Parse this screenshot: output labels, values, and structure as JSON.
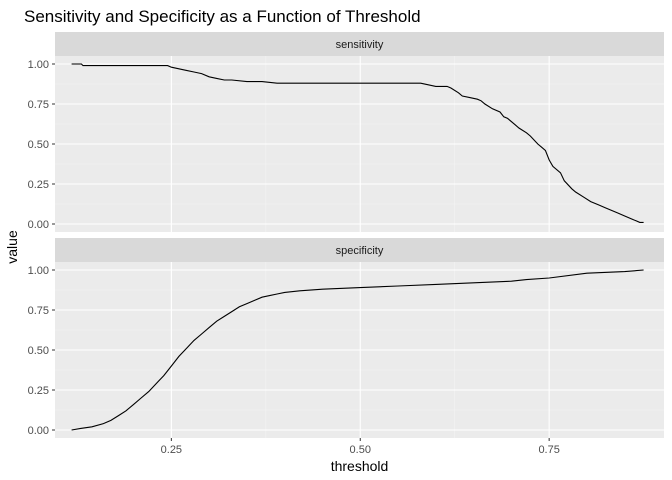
{
  "chart_data": {
    "type": "line",
    "title": "Sensitivity and Specificity as a Function of Threshold",
    "xlabel": "threshold",
    "ylabel": "value",
    "x_ticks": [
      0.25,
      0.5,
      0.75
    ],
    "x_tick_labels": [
      "0.25",
      "0.50",
      "0.75"
    ],
    "y_ticks": [
      0,
      0.25,
      0.5,
      0.75,
      1
    ],
    "y_tick_labels": [
      "0.00",
      "0.25",
      "0.50",
      "0.75",
      "1.00"
    ],
    "xlim": [
      0.096,
      0.902
    ],
    "ylim": [
      -0.05,
      1.05
    ],
    "grid": true,
    "facets": [
      {
        "strip": "sensitivity",
        "x": [
          0.118,
          0.131,
          0.133,
          0.2,
          0.245,
          0.25,
          0.26,
          0.27,
          0.28,
          0.29,
          0.3,
          0.31,
          0.32,
          0.33,
          0.35,
          0.37,
          0.39,
          0.45,
          0.5,
          0.55,
          0.58,
          0.59,
          0.6,
          0.615,
          0.62,
          0.63,
          0.635,
          0.645,
          0.655,
          0.66,
          0.665,
          0.675,
          0.685,
          0.69,
          0.695,
          0.705,
          0.71,
          0.72,
          0.725,
          0.735,
          0.74,
          0.745,
          0.75,
          0.755,
          0.765,
          0.77,
          0.78,
          0.785,
          0.795,
          0.805,
          0.815,
          0.825,
          0.84,
          0.85,
          0.86,
          0.865,
          0.87,
          0.875
        ],
        "y": [
          1.0,
          1.0,
          0.99,
          0.99,
          0.99,
          0.98,
          0.97,
          0.96,
          0.95,
          0.94,
          0.92,
          0.91,
          0.9,
          0.9,
          0.89,
          0.89,
          0.88,
          0.88,
          0.88,
          0.88,
          0.88,
          0.87,
          0.86,
          0.86,
          0.85,
          0.82,
          0.8,
          0.79,
          0.78,
          0.77,
          0.75,
          0.72,
          0.7,
          0.67,
          0.66,
          0.62,
          0.6,
          0.57,
          0.55,
          0.5,
          0.48,
          0.46,
          0.4,
          0.36,
          0.32,
          0.27,
          0.22,
          0.2,
          0.17,
          0.14,
          0.12,
          0.1,
          0.07,
          0.05,
          0.03,
          0.02,
          0.01,
          0.01
        ]
      },
      {
        "strip": "specificity",
        "x": [
          0.118,
          0.13,
          0.145,
          0.16,
          0.17,
          0.18,
          0.19,
          0.2,
          0.21,
          0.22,
          0.23,
          0.24,
          0.25,
          0.26,
          0.27,
          0.28,
          0.29,
          0.3,
          0.31,
          0.32,
          0.33,
          0.34,
          0.35,
          0.36,
          0.37,
          0.38,
          0.39,
          0.4,
          0.42,
          0.45,
          0.5,
          0.55,
          0.6,
          0.65,
          0.7,
          0.72,
          0.75,
          0.8,
          0.85,
          0.875
        ],
        "y": [
          0.0,
          0.01,
          0.02,
          0.04,
          0.06,
          0.09,
          0.12,
          0.16,
          0.2,
          0.24,
          0.29,
          0.34,
          0.4,
          0.46,
          0.51,
          0.56,
          0.6,
          0.64,
          0.68,
          0.71,
          0.74,
          0.77,
          0.79,
          0.81,
          0.83,
          0.84,
          0.85,
          0.86,
          0.87,
          0.88,
          0.89,
          0.9,
          0.91,
          0.92,
          0.93,
          0.94,
          0.95,
          0.98,
          0.99,
          1.0
        ]
      }
    ]
  }
}
